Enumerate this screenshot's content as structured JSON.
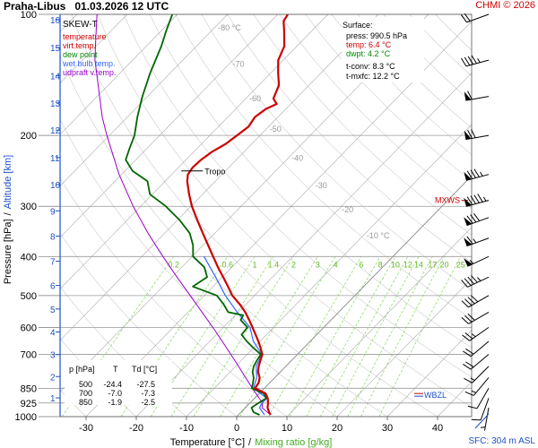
{
  "header": {
    "station": "Praha-Libus",
    "datetime": "01.03.2026 12 UTC",
    "copyright": "CHMI © 2026"
  },
  "legend": {
    "title": "SKEW-T",
    "items": [
      {
        "label": "temperature",
        "color": "#cc0000"
      },
      {
        "label": "virt.temp.",
        "color": "#cc0000"
      },
      {
        "label": "dew point",
        "color": "#008800"
      },
      {
        "label": "wet bulb temp.",
        "color": "#3366ff"
      },
      {
        "label": "udpraft v.temp.",
        "color": "#9900cc"
      }
    ]
  },
  "surface": {
    "title": "Surface:",
    "press": "press: 990.5 hPa",
    "temp": "temp: 6.4 °C",
    "dwpt": "dwpt: 4.2 °C",
    "tconv": "t-conv: 8.3 °C",
    "tmxfc": "t-mxfc: 12.2 °C"
  },
  "table": {
    "headers": [
      "p [hPa]",
      "T",
      "Td [°C]"
    ],
    "rows": [
      [
        "500",
        "-24.4",
        "-27.5"
      ],
      [
        "700",
        "-7.0",
        "-7.3"
      ],
      [
        "850",
        "-1.9",
        "-2.5"
      ]
    ]
  },
  "annotations": {
    "tropo": "Tropo",
    "mxws": "MXWS",
    "wbzl": "WBZL",
    "sfc": "SFC: 304 m ASL"
  },
  "axes": {
    "xlabel": "Temperature [°C]",
    "xlabel_sep": "/",
    "xlabel2": "Mixing ratio [g/kg]",
    "ylabel_pressure": "Pressure [hPa]",
    "ylabel_sep": "/",
    "ylabel_altitude": "Altitude [km]"
  },
  "colors": {
    "temperature": "#cc0000",
    "dewpoint": "#006600",
    "wetbulb": "#3366ff",
    "parcel": "#9900cc",
    "mixing": "#66cc33",
    "isotherm": "#aaaaaa",
    "adiabat": "#cccccc",
    "axis_blue": "#1e50c8"
  },
  "chart_data": {
    "type": "skew-t",
    "x_ticks": [
      -30,
      -20,
      -10,
      0,
      10,
      20,
      30,
      40
    ],
    "y_ticks_pressure": [
      100,
      200,
      300,
      400,
      500,
      600,
      700,
      850,
      925,
      1000
    ],
    "altitude_ticks_km": [
      {
        "km": 1,
        "p": 898
      },
      {
        "km": 2,
        "p": 795
      },
      {
        "km": 3,
        "p": 701
      },
      {
        "km": 4,
        "p": 616
      },
      {
        "km": 5,
        "p": 540
      },
      {
        "km": 6,
        "p": 472
      },
      {
        "km": 7,
        "p": 411
      },
      {
        "km": 8,
        "p": 356
      },
      {
        "km": 9,
        "p": 308
      },
      {
        "km": 10,
        "p": 265
      },
      {
        "km": 11,
        "p": 227
      },
      {
        "km": 12,
        "p": 194
      },
      {
        "km": 13,
        "p": 166
      },
      {
        "km": 14,
        "p": 142
      },
      {
        "km": 15,
        "p": 121
      },
      {
        "km": 16,
        "p": 103
      }
    ],
    "isotherm_labels": [
      {
        "t": -80,
        "p": 108,
        "label": "-80 °C"
      },
      {
        "t": -70,
        "p": 133,
        "label": "-70"
      },
      {
        "t": -60,
        "p": 162,
        "label": "-60"
      },
      {
        "t": -50,
        "p": 193,
        "label": "-50"
      },
      {
        "t": -40,
        "p": 228,
        "label": "-40"
      },
      {
        "t": -30,
        "p": 266,
        "label": "-30"
      },
      {
        "t": -20,
        "p": 306,
        "label": "-20"
      },
      {
        "t": -10,
        "p": 355,
        "label": "-10 °C"
      }
    ],
    "mixing_ratio_labels": [
      "0.2",
      "0.6",
      "1",
      "1.4",
      "2",
      "3",
      "4",
      "6",
      "8",
      "10",
      "12",
      "14",
      "17",
      "20",
      "25"
    ],
    "mixing_ratio_values": [
      0.2,
      0.6,
      1,
      1.4,
      2,
      3,
      4,
      6,
      8,
      10,
      12,
      14,
      17,
      20,
      25
    ],
    "temperature": [
      [
        990,
        6.4
      ],
      [
        975,
        5.6
      ],
      [
        950,
        4.4
      ],
      [
        925,
        3.6
      ],
      [
        900,
        2.6
      ],
      [
        875,
        1.2
      ],
      [
        850,
        -1.9
      ],
      [
        825,
        -2.2
      ],
      [
        800,
        -3.0
      ],
      [
        775,
        -4.4
      ],
      [
        750,
        -5.4
      ],
      [
        725,
        -6.2
      ],
      [
        700,
        -7.0
      ],
      [
        675,
        -8.6
      ],
      [
        650,
        -10.3
      ],
      [
        625,
        -12.2
      ],
      [
        600,
        -14.2
      ],
      [
        575,
        -16.3
      ],
      [
        550,
        -18.6
      ],
      [
        525,
        -21.3
      ],
      [
        500,
        -24.4
      ],
      [
        475,
        -27.0
      ],
      [
        450,
        -29.8
      ],
      [
        425,
        -32.8
      ],
      [
        400,
        -35.8
      ],
      [
        375,
        -39.0
      ],
      [
        350,
        -42.4
      ],
      [
        325,
        -46.0
      ],
      [
        300,
        -49.8
      ],
      [
        280,
        -52.7
      ],
      [
        260,
        -55.6
      ],
      [
        250,
        -56.8
      ],
      [
        240,
        -57.2
      ],
      [
        230,
        -57.0
      ],
      [
        220,
        -56.4
      ],
      [
        210,
        -55.2
      ],
      [
        200,
        -54.6
      ],
      [
        190,
        -54.0
      ],
      [
        180,
        -54.6
      ],
      [
        172,
        -54.0
      ],
      [
        167,
        -52.8
      ],
      [
        162,
        -54.5
      ],
      [
        150,
        -56.0
      ],
      [
        140,
        -58.5
      ],
      [
        130,
        -61.0
      ],
      [
        120,
        -62.5
      ],
      [
        110,
        -65.5
      ],
      [
        104,
        -67.5
      ],
      [
        100,
        -68.0
      ]
    ],
    "dewpoint": [
      [
        990,
        4.2
      ],
      [
        975,
        2.5
      ],
      [
        950,
        1.2
      ],
      [
        925,
        1.7
      ],
      [
        900,
        2.3
      ],
      [
        875,
        0.8
      ],
      [
        850,
        -2.5
      ],
      [
        825,
        -3.3
      ],
      [
        800,
        -4.2
      ],
      [
        775,
        -5.5
      ],
      [
        750,
        -6.4
      ],
      [
        725,
        -6.9
      ],
      [
        700,
        -7.3
      ],
      [
        675,
        -10.0
      ],
      [
        650,
        -12.6
      ],
      [
        625,
        -15.0
      ],
      [
        600,
        -15.2
      ],
      [
        575,
        -18.0
      ],
      [
        560,
        -18.4
      ],
      [
        550,
        -22.0
      ],
      [
        525,
        -24.5
      ],
      [
        500,
        -27.5
      ],
      [
        475,
        -34.0
      ],
      [
        450,
        -33.0
      ],
      [
        425,
        -35.5
      ],
      [
        400,
        -39.8
      ],
      [
        375,
        -42.0
      ],
      [
        350,
        -45.0
      ],
      [
        325,
        -49.5
      ],
      [
        300,
        -55.0
      ],
      [
        280,
        -60.5
      ],
      [
        260,
        -63.5
      ],
      [
        245,
        -68.5
      ],
      [
        230,
        -72.0
      ],
      [
        215,
        -73.5
      ],
      [
        200,
        -75.0
      ],
      [
        180,
        -78.0
      ],
      [
        160,
        -81.0
      ],
      [
        140,
        -84.0
      ],
      [
        120,
        -87.0
      ],
      [
        110,
        -89.0
      ],
      [
        100,
        -91.0
      ]
    ],
    "wetbulb": [
      [
        990,
        5.2
      ],
      [
        950,
        2.8
      ],
      [
        925,
        2.4
      ],
      [
        900,
        2.4
      ],
      [
        850,
        -2.2
      ],
      [
        800,
        -3.6
      ],
      [
        750,
        -5.9
      ],
      [
        700,
        -7.1
      ],
      [
        650,
        -11.3
      ],
      [
        600,
        -14.7
      ],
      [
        550,
        -20.2
      ],
      [
        500,
        -25.8
      ],
      [
        450,
        -31.3
      ],
      [
        400,
        -37.6
      ]
    ],
    "parcel": [
      [
        990,
        6.4
      ],
      [
        950,
        3.3
      ],
      [
        925,
        2.5
      ],
      [
        900,
        0.9
      ],
      [
        850,
        -2.4
      ],
      [
        800,
        -5.8
      ],
      [
        750,
        -9.4
      ],
      [
        700,
        -13.3
      ],
      [
        650,
        -17.5
      ],
      [
        600,
        -22.1
      ],
      [
        550,
        -27.2
      ],
      [
        500,
        -32.8
      ],
      [
        450,
        -39.0
      ],
      [
        400,
        -45.8
      ],
      [
        350,
        -53.3
      ],
      [
        300,
        -61.5
      ],
      [
        250,
        -70.5
      ],
      [
        200,
        -80.5
      ],
      [
        180,
        -85.0
      ],
      [
        150,
        -92.0
      ],
      [
        130,
        -97.5
      ],
      [
        115,
        -101.5
      ],
      [
        100,
        -106.0
      ]
    ],
    "wind_barbs": [
      {
        "p": 100,
        "dir": 250,
        "spd": 20
      },
      {
        "p": 130,
        "dir": 255,
        "spd": 45
      },
      {
        "p": 160,
        "dir": 260,
        "spd": 60
      },
      {
        "p": 200,
        "dir": 260,
        "spd": 70
      },
      {
        "p": 250,
        "dir": 255,
        "spd": 85
      },
      {
        "p": 290,
        "dir": 255,
        "spd": 95
      },
      {
        "p": 320,
        "dir": 250,
        "spd": 80
      },
      {
        "p": 360,
        "dir": 250,
        "spd": 65
      },
      {
        "p": 400,
        "dir": 245,
        "spd": 55
      },
      {
        "p": 450,
        "dir": 245,
        "spd": 45
      },
      {
        "p": 500,
        "dir": 240,
        "spd": 40
      },
      {
        "p": 550,
        "dir": 240,
        "spd": 30
      },
      {
        "p": 600,
        "dir": 235,
        "spd": 25
      },
      {
        "p": 650,
        "dir": 230,
        "spd": 20
      },
      {
        "p": 700,
        "dir": 230,
        "spd": 20
      },
      {
        "p": 750,
        "dir": 225,
        "spd": 15
      },
      {
        "p": 800,
        "dir": 220,
        "spd": 15
      },
      {
        "p": 850,
        "dir": 210,
        "spd": 10
      },
      {
        "p": 900,
        "dir": 200,
        "spd": 10
      },
      {
        "p": 950,
        "dir": 190,
        "spd": 5
      }
    ],
    "tropopause_p": 245,
    "mxws_p": 290,
    "wbzl_p": 885
  }
}
